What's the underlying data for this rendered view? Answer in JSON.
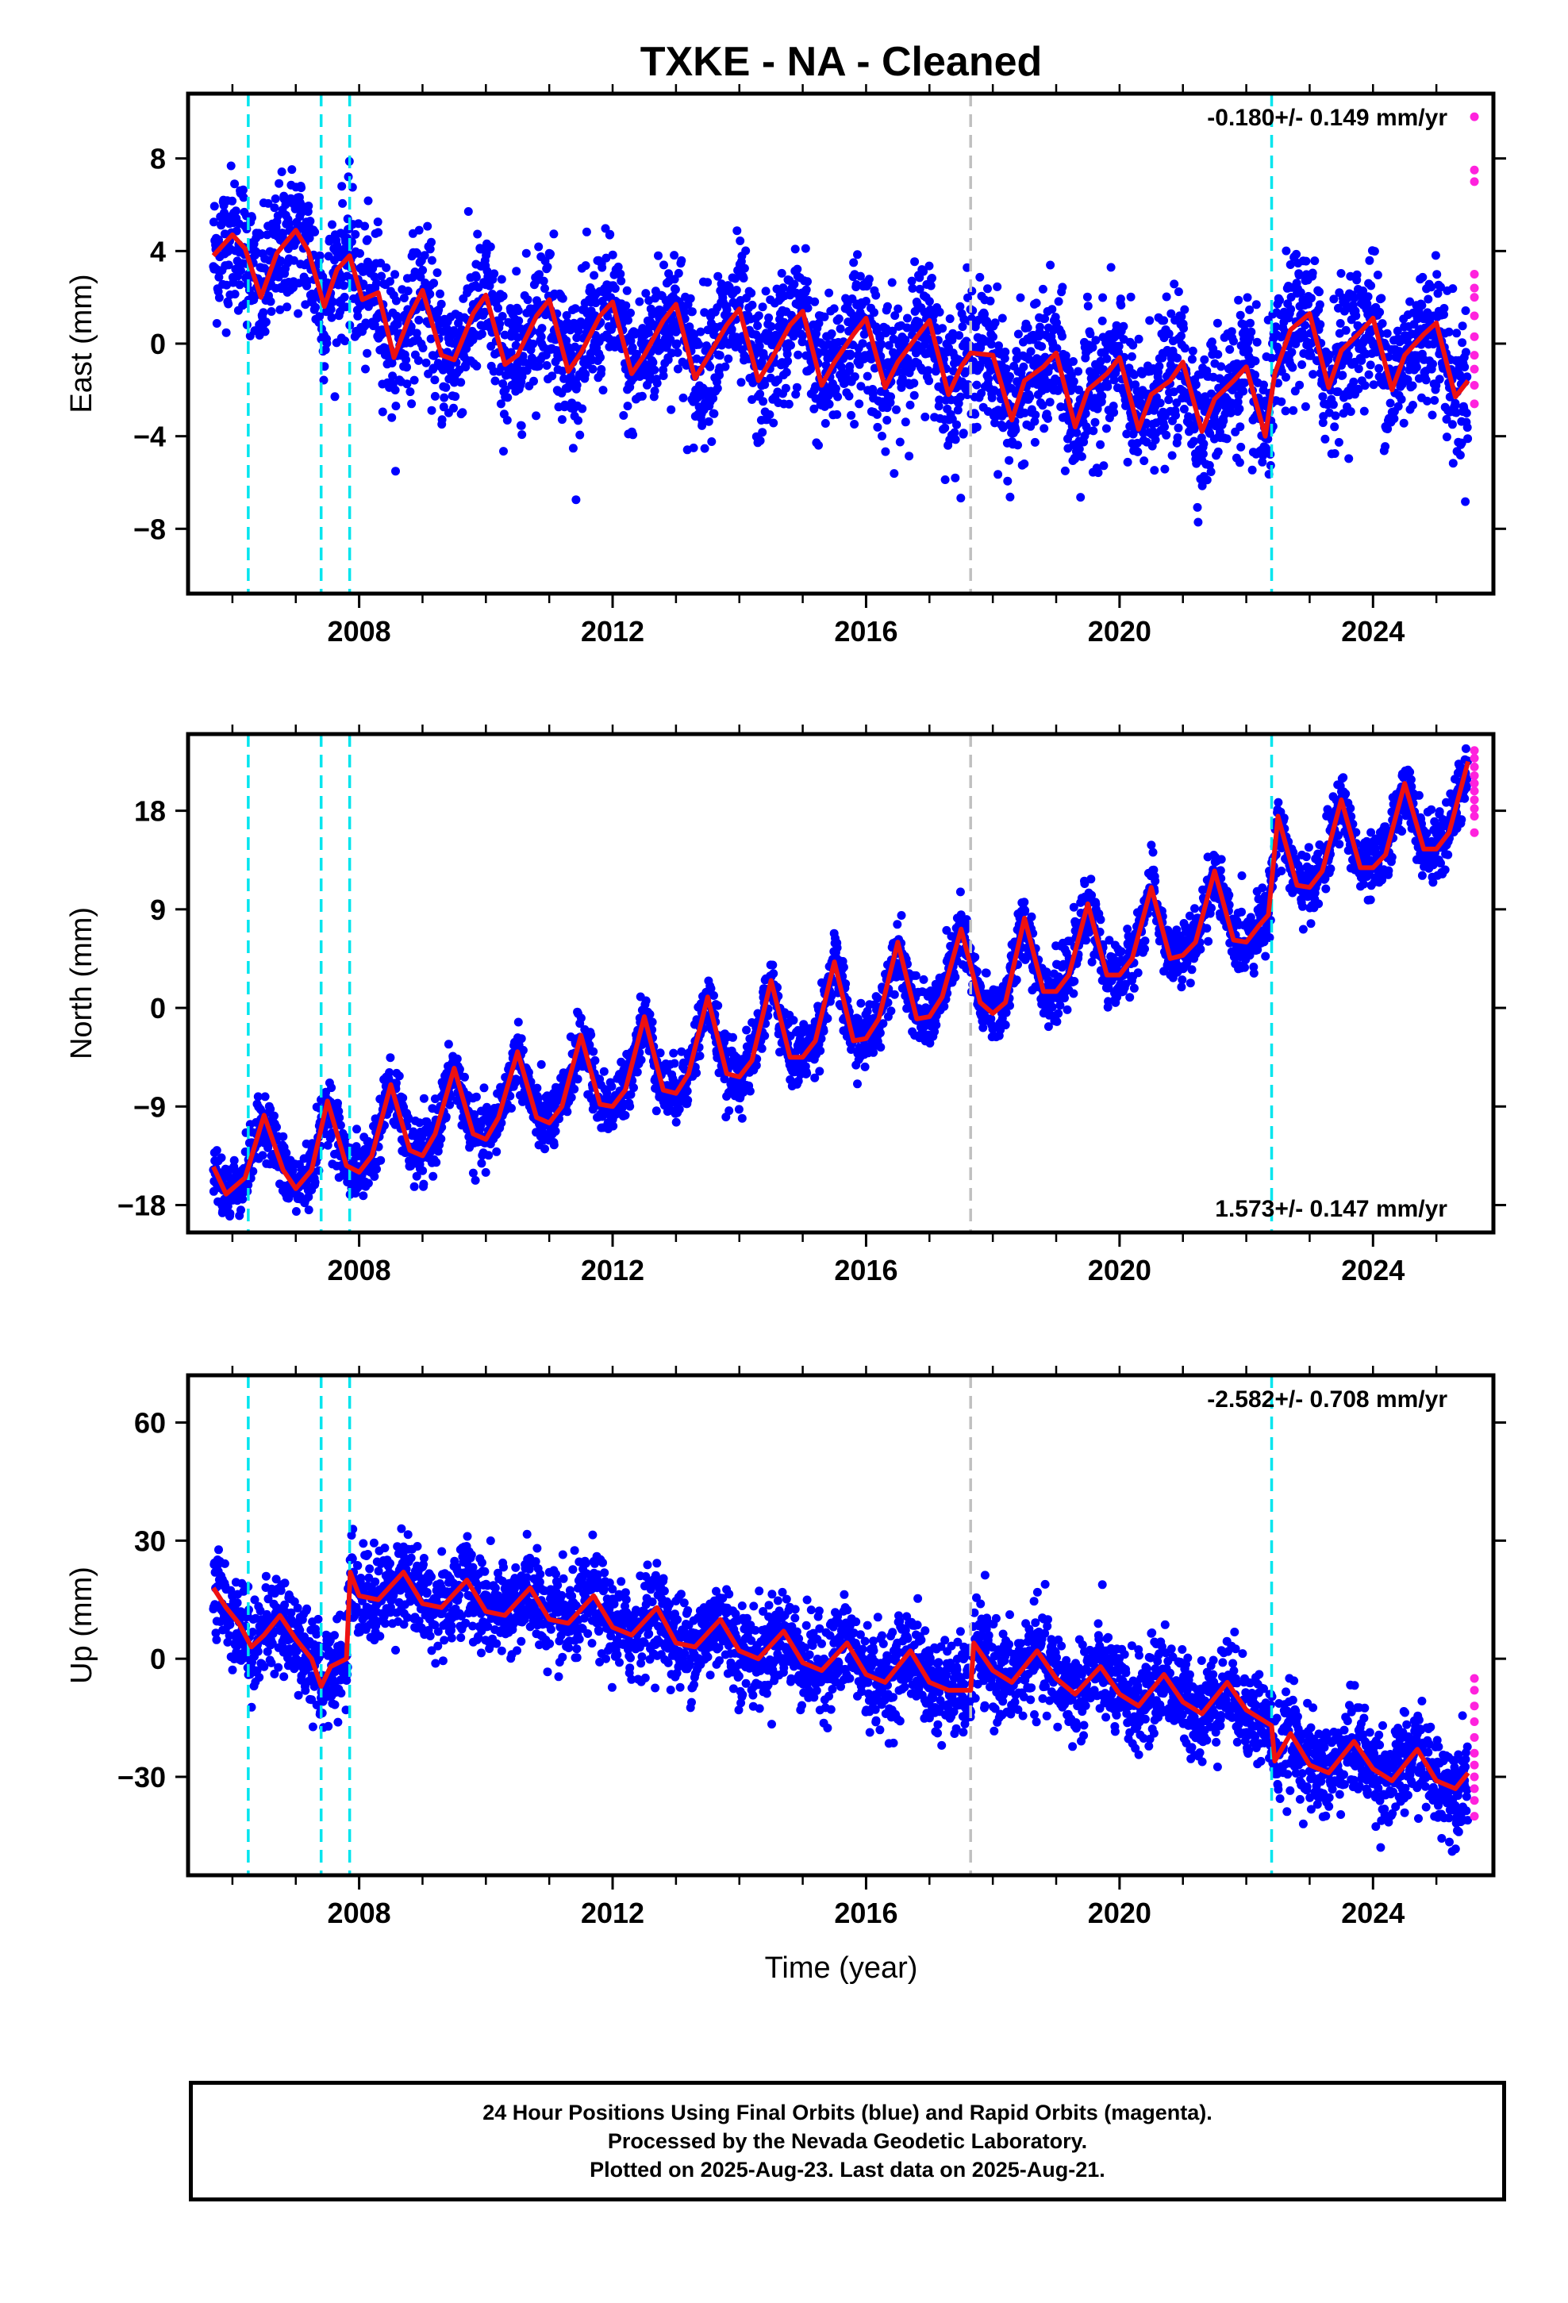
{
  "title": "TXKE  - NA - Cleaned",
  "x_axis_label": "Time (year)",
  "footer": {
    "line1": "24 Hour Positions Using Final Orbits (blue) and Rapid Orbits (magenta).",
    "line2": "Processed by the Nevada Geodetic Laboratory.",
    "line3": "Plotted on 2025-Aug-23. Last data on 2025-Aug-21."
  },
  "colors": {
    "final_points": "#0000ff",
    "rapid_points": "#ff22dd",
    "model_line": "#ee1111",
    "event_line_cyan": "#00e5ee",
    "event_line_gray": "#c0c0c0"
  },
  "chart_data": [
    {
      "type": "scatter",
      "component": "east",
      "ylabel": "East (mm)",
      "rate_text": "-0.180+/- 0.149 mm/yr",
      "rate_position": "top-right",
      "xlim": [
        2005.3,
        2025.9
      ],
      "ylim": [
        -10.8,
        10.8
      ],
      "x_ticks": [
        2008,
        2012,
        2016,
        2020,
        2024
      ],
      "y_ticks": [
        -8,
        -4,
        0,
        4,
        8
      ],
      "y_tick_labels": [
        "−8",
        "−4",
        "0",
        "4",
        "8"
      ],
      "event_lines": {
        "cyan": [
          2006.25,
          2007.4,
          2007.85,
          2022.4
        ],
        "gray": [
          2017.65
        ]
      },
      "model_series": {
        "name": "",
        "x": [
          2005.7,
          2006.0,
          2006.2,
          2006.45,
          2006.7,
          2007.0,
          2007.2,
          2007.45,
          2007.65,
          2007.85,
          2008.05,
          2008.3,
          2008.55,
          2008.8,
          2009.0,
          2009.3,
          2009.5,
          2009.8,
          2010.0,
          2010.3,
          2010.5,
          2010.8,
          2011.0,
          2011.3,
          2011.5,
          2011.8,
          2012.0,
          2012.3,
          2012.5,
          2012.8,
          2013.0,
          2013.3,
          2013.5,
          2013.8,
          2014.0,
          2014.3,
          2014.5,
          2014.8,
          2015.0,
          2015.3,
          2015.5,
          2015.8,
          2016.0,
          2016.3,
          2016.5,
          2016.8,
          2017.0,
          2017.3,
          2017.5,
          2017.65,
          2018.0,
          2018.3,
          2018.5,
          2018.8,
          2019.0,
          2019.3,
          2019.5,
          2019.8,
          2020.0,
          2020.3,
          2020.5,
          2020.8,
          2021.0,
          2021.3,
          2021.5,
          2021.8,
          2022.0,
          2022.3,
          2022.45,
          2022.7,
          2023.0,
          2023.3,
          2023.5,
          2023.8,
          2024.0,
          2024.3,
          2024.5,
          2024.8,
          2025.0,
          2025.3,
          2025.5
        ],
        "y": [
          3.8,
          4.7,
          4.1,
          2.0,
          3.9,
          4.9,
          4.0,
          1.6,
          3.2,
          3.8,
          1.9,
          2.2,
          -0.6,
          1.2,
          2.3,
          -0.5,
          -0.7,
          1.3,
          2.1,
          -0.9,
          -0.5,
          1.2,
          1.9,
          -1.2,
          -0.4,
          1.2,
          1.8,
          -1.3,
          -0.5,
          1.0,
          1.7,
          -1.5,
          -0.6,
          0.8,
          1.5,
          -1.6,
          -0.7,
          0.8,
          1.4,
          -1.8,
          -0.8,
          0.4,
          1.1,
          -1.9,
          -0.8,
          0.3,
          1.0,
          -2.2,
          -1.0,
          -0.4,
          -0.5,
          -3.3,
          -1.6,
          -1.0,
          -0.4,
          -3.6,
          -2.0,
          -1.3,
          -0.6,
          -3.7,
          -2.2,
          -1.6,
          -0.8,
          -3.8,
          -2.4,
          -1.6,
          -1.0,
          -4.0,
          -1.3,
          0.6,
          1.3,
          -1.9,
          -0.3,
          0.5,
          1.1,
          -2.0,
          -0.5,
          0.4,
          0.9,
          -2.3,
          -1.6
        ]
      },
      "noise_sd": 1.5,
      "rapid_points": [
        -2.6,
        3.0,
        2.4,
        1.2,
        0.3,
        -0.5,
        -1.1,
        -1.8,
        2.0,
        7.0,
        7.5,
        9.8
      ]
    },
    {
      "type": "scatter",
      "component": "north",
      "ylabel": "North (mm)",
      "rate_text": "1.573+/- 0.147 mm/yr",
      "rate_position": "bottom-right",
      "xlim": [
        2005.3,
        2025.9
      ],
      "ylim": [
        -20.5,
        25.0
      ],
      "x_ticks": [
        2008,
        2012,
        2016,
        2020,
        2024
      ],
      "y_ticks": [
        -18,
        -9,
        0,
        9,
        18
      ],
      "y_tick_labels": [
        "−18",
        "−9",
        "0",
        "9",
        "18"
      ],
      "event_lines": {
        "cyan": [
          2006.25,
          2007.4,
          2007.85,
          2022.4
        ],
        "gray": [
          2017.65
        ]
      },
      "model_series": {
        "name": "",
        "x": [
          2005.7,
          2005.9,
          2006.2,
          2006.5,
          2006.8,
          2007.0,
          2007.25,
          2007.5,
          2007.8,
          2008.0,
          2008.2,
          2008.5,
          2008.8,
          2009.0,
          2009.2,
          2009.5,
          2009.8,
          2010.0,
          2010.2,
          2010.5,
          2010.8,
          2011.0,
          2011.2,
          2011.5,
          2011.8,
          2012.0,
          2012.2,
          2012.5,
          2012.8,
          2013.0,
          2013.2,
          2013.5,
          2013.8,
          2014.0,
          2014.2,
          2014.5,
          2014.8,
          2015.0,
          2015.2,
          2015.5,
          2015.8,
          2016.0,
          2016.2,
          2016.5,
          2016.8,
          2017.0,
          2017.2,
          2017.5,
          2017.8,
          2018.0,
          2018.2,
          2018.5,
          2018.8,
          2019.0,
          2019.2,
          2019.5,
          2019.8,
          2020.0,
          2020.2,
          2020.5,
          2020.8,
          2021.0,
          2021.2,
          2021.5,
          2021.8,
          2022.0,
          2022.2,
          2022.35,
          2022.5,
          2022.8,
          2023.0,
          2023.2,
          2023.5,
          2023.8,
          2024.0,
          2024.2,
          2024.5,
          2024.8,
          2025.0,
          2025.2,
          2025.5
        ],
        "y": [
          -14.5,
          -17.0,
          -15.5,
          -9.8,
          -14.8,
          -16.5,
          -14.8,
          -8.5,
          -14.4,
          -15.0,
          -13.5,
          -7.0,
          -13.0,
          -13.5,
          -11.5,
          -5.5,
          -11.5,
          -12.0,
          -10.0,
          -4.0,
          -10.0,
          -10.5,
          -9.0,
          -2.5,
          -8.8,
          -9.0,
          -7.5,
          -0.8,
          -7.5,
          -7.8,
          -6.0,
          1.0,
          -6.0,
          -6.3,
          -4.8,
          2.5,
          -4.5,
          -4.5,
          -3.0,
          4.2,
          -3.0,
          -2.8,
          -1.0,
          6.0,
          -1.0,
          -0.8,
          1.0,
          7.2,
          0.5,
          -0.5,
          0.5,
          8.2,
          1.5,
          1.5,
          3.0,
          9.5,
          3.0,
          3.0,
          4.5,
          11.0,
          4.5,
          4.8,
          6.0,
          12.5,
          6.2,
          6.0,
          7.5,
          8.5,
          17.5,
          11.2,
          11.0,
          12.5,
          19.0,
          12.8,
          12.8,
          14.0,
          20.5,
          14.5,
          14.5,
          16.0,
          22.5
        ]
      },
      "noise_sd": 1.4,
      "rapid_points": [
        16.0,
        17.5,
        18.2,
        19.0,
        19.8,
        20.5,
        21.2,
        22.0,
        22.8,
        23.5
      ]
    },
    {
      "type": "scatter",
      "component": "up",
      "ylabel": "Up (mm)",
      "rate_text": "-2.582+/- 0.708 mm/yr",
      "rate_position": "top-right",
      "xlim": [
        2005.3,
        2025.9
      ],
      "ylim": [
        -55,
        72
      ],
      "x_ticks": [
        2008,
        2012,
        2016,
        2020,
        2024
      ],
      "y_ticks": [
        -30,
        0,
        30,
        60
      ],
      "y_tick_labels": [
        "−30",
        "0",
        "30",
        "60"
      ],
      "event_lines": {
        "cyan": [
          2006.25,
          2007.4,
          2007.85,
          2022.4
        ],
        "gray": [
          2017.65
        ]
      },
      "model_series": {
        "name": "",
        "x": [
          2005.7,
          2005.9,
          2006.1,
          2006.3,
          2006.5,
          2006.75,
          2007.0,
          2007.25,
          2007.4,
          2007.55,
          2007.8,
          2007.86,
          2008.0,
          2008.3,
          2008.7,
          2009.0,
          2009.3,
          2009.7,
          2010.0,
          2010.3,
          2010.7,
          2011.0,
          2011.3,
          2011.7,
          2012.0,
          2012.3,
          2012.7,
          2013.0,
          2013.3,
          2013.7,
          2014.0,
          2014.3,
          2014.7,
          2015.0,
          2015.3,
          2015.7,
          2016.0,
          2016.3,
          2016.7,
          2017.0,
          2017.3,
          2017.65,
          2017.7,
          2018.0,
          2018.3,
          2018.7,
          2019.0,
          2019.3,
          2019.7,
          2020.0,
          2020.3,
          2020.7,
          2021.0,
          2021.3,
          2021.7,
          2022.0,
          2022.3,
          2022.4,
          2022.45,
          2022.7,
          2023.0,
          2023.3,
          2023.7,
          2024.0,
          2024.3,
          2024.7,
          2025.0,
          2025.3,
          2025.5
        ],
        "y": [
          18,
          13,
          9,
          3,
          6,
          11,
          5,
          0,
          -7,
          -2,
          0,
          22,
          16,
          15,
          22,
          14,
          13,
          20,
          12,
          11,
          18,
          10,
          9,
          16,
          8,
          6,
          13,
          4,
          3,
          10,
          2,
          0,
          7,
          -1,
          -3,
          4,
          -4,
          -6,
          2,
          -6,
          -8,
          -8,
          4,
          -3,
          -6,
          2,
          -5,
          -9,
          -2,
          -9,
          -12,
          -4,
          -11,
          -14,
          -6,
          -13,
          -16,
          -17,
          -26,
          -19,
          -27,
          -29,
          -21,
          -28,
          -31,
          -23,
          -31,
          -33,
          -29
        ]
      },
      "noise_sd": 6.0,
      "rapid_points": [
        -40,
        -36,
        -33,
        -30,
        -27,
        -24,
        -20,
        -16,
        -12,
        -8,
        -5
      ]
    }
  ]
}
